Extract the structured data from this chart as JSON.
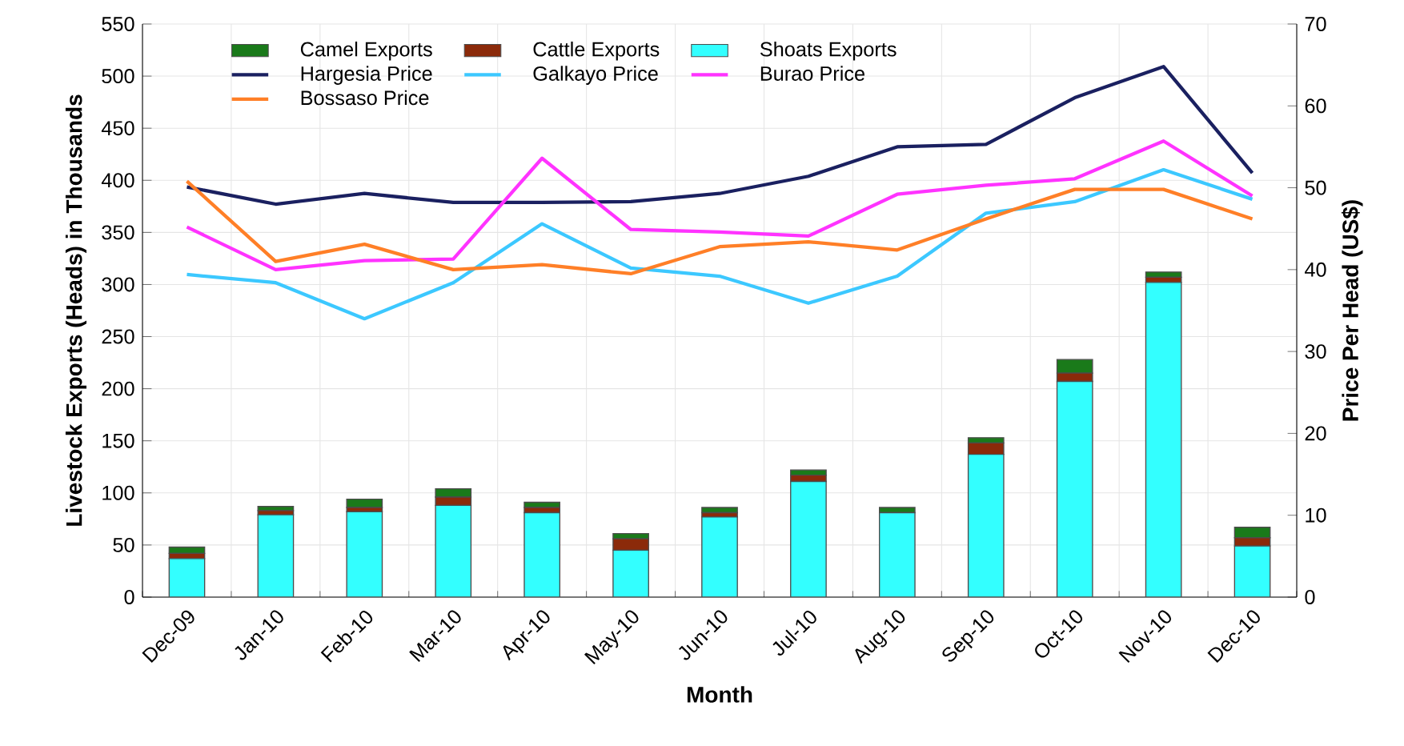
{
  "chart_data": {
    "type": "bar",
    "stacked": true,
    "xlabel": "Month",
    "ylabel": "Livestock Exports (Heads) in Thousands",
    "y2label": "Price Per Head (US$)",
    "categories": [
      "Dec-09",
      "Jan-10",
      "Feb-10",
      "Mar-10",
      "Apr-10",
      "May-10",
      "Jun-10",
      "Jul-10",
      "Aug-10",
      "Sep-10",
      "Oct-10",
      "Nov-10",
      "Dec-10"
    ],
    "ylim": [
      0,
      550
    ],
    "yticks": [
      0,
      50,
      100,
      150,
      200,
      250,
      300,
      350,
      400,
      450,
      500,
      550
    ],
    "y2lim": [
      0,
      70
    ],
    "y2ticks": [
      0,
      10,
      20,
      30,
      40,
      50,
      60,
      70
    ],
    "grid": true,
    "legend": "top",
    "series": [
      {
        "name": "Shoats Exports",
        "color": "#33ffff",
        "values": [
          37,
          79,
          82,
          88,
          81,
          45,
          77,
          111,
          81,
          137,
          207,
          302,
          49
        ]
      },
      {
        "name": "Cattle Exports",
        "color": "#8b2a0a",
        "values": [
          5,
          4,
          4,
          8,
          5,
          11,
          4,
          6,
          0,
          11,
          8,
          5,
          8
        ]
      },
      {
        "name": "Camel Exports",
        "color": "#1a7a1a",
        "values": [
          6,
          4,
          8,
          8,
          5,
          5,
          5,
          5,
          5,
          5,
          13,
          5,
          10
        ]
      },
      {
        "name": "Hargesia Price",
        "type": "line",
        "axis": "y2",
        "color": "#1a2060",
        "values": [
          50.1,
          48.0,
          49.3,
          48.2,
          48.2,
          48.3,
          49.3,
          51.4,
          55.0,
          55.3,
          61.0,
          64.8,
          51.8
        ]
      },
      {
        "name": "Galkayo Price",
        "type": "line",
        "axis": "y2",
        "color": "#3cc8ff",
        "values": [
          39.4,
          38.4,
          34.0,
          38.4,
          45.6,
          40.2,
          39.2,
          35.9,
          39.2,
          46.9,
          48.3,
          52.2,
          48.6
        ]
      },
      {
        "name": "Burao Price",
        "type": "line",
        "axis": "y2",
        "color": "#ff33ff",
        "values": [
          45.2,
          40.0,
          41.1,
          41.3,
          53.6,
          44.9,
          44.6,
          44.1,
          49.2,
          50.3,
          51.1,
          55.7,
          49.0
        ]
      },
      {
        "name": "Bossaso Price",
        "type": "line",
        "axis": "y2",
        "color": "#ff7f27",
        "values": [
          50.8,
          41.0,
          43.1,
          40.0,
          40.6,
          39.5,
          42.8,
          43.4,
          42.4,
          46.2,
          49.8,
          49.8,
          46.2
        ]
      }
    ]
  }
}
